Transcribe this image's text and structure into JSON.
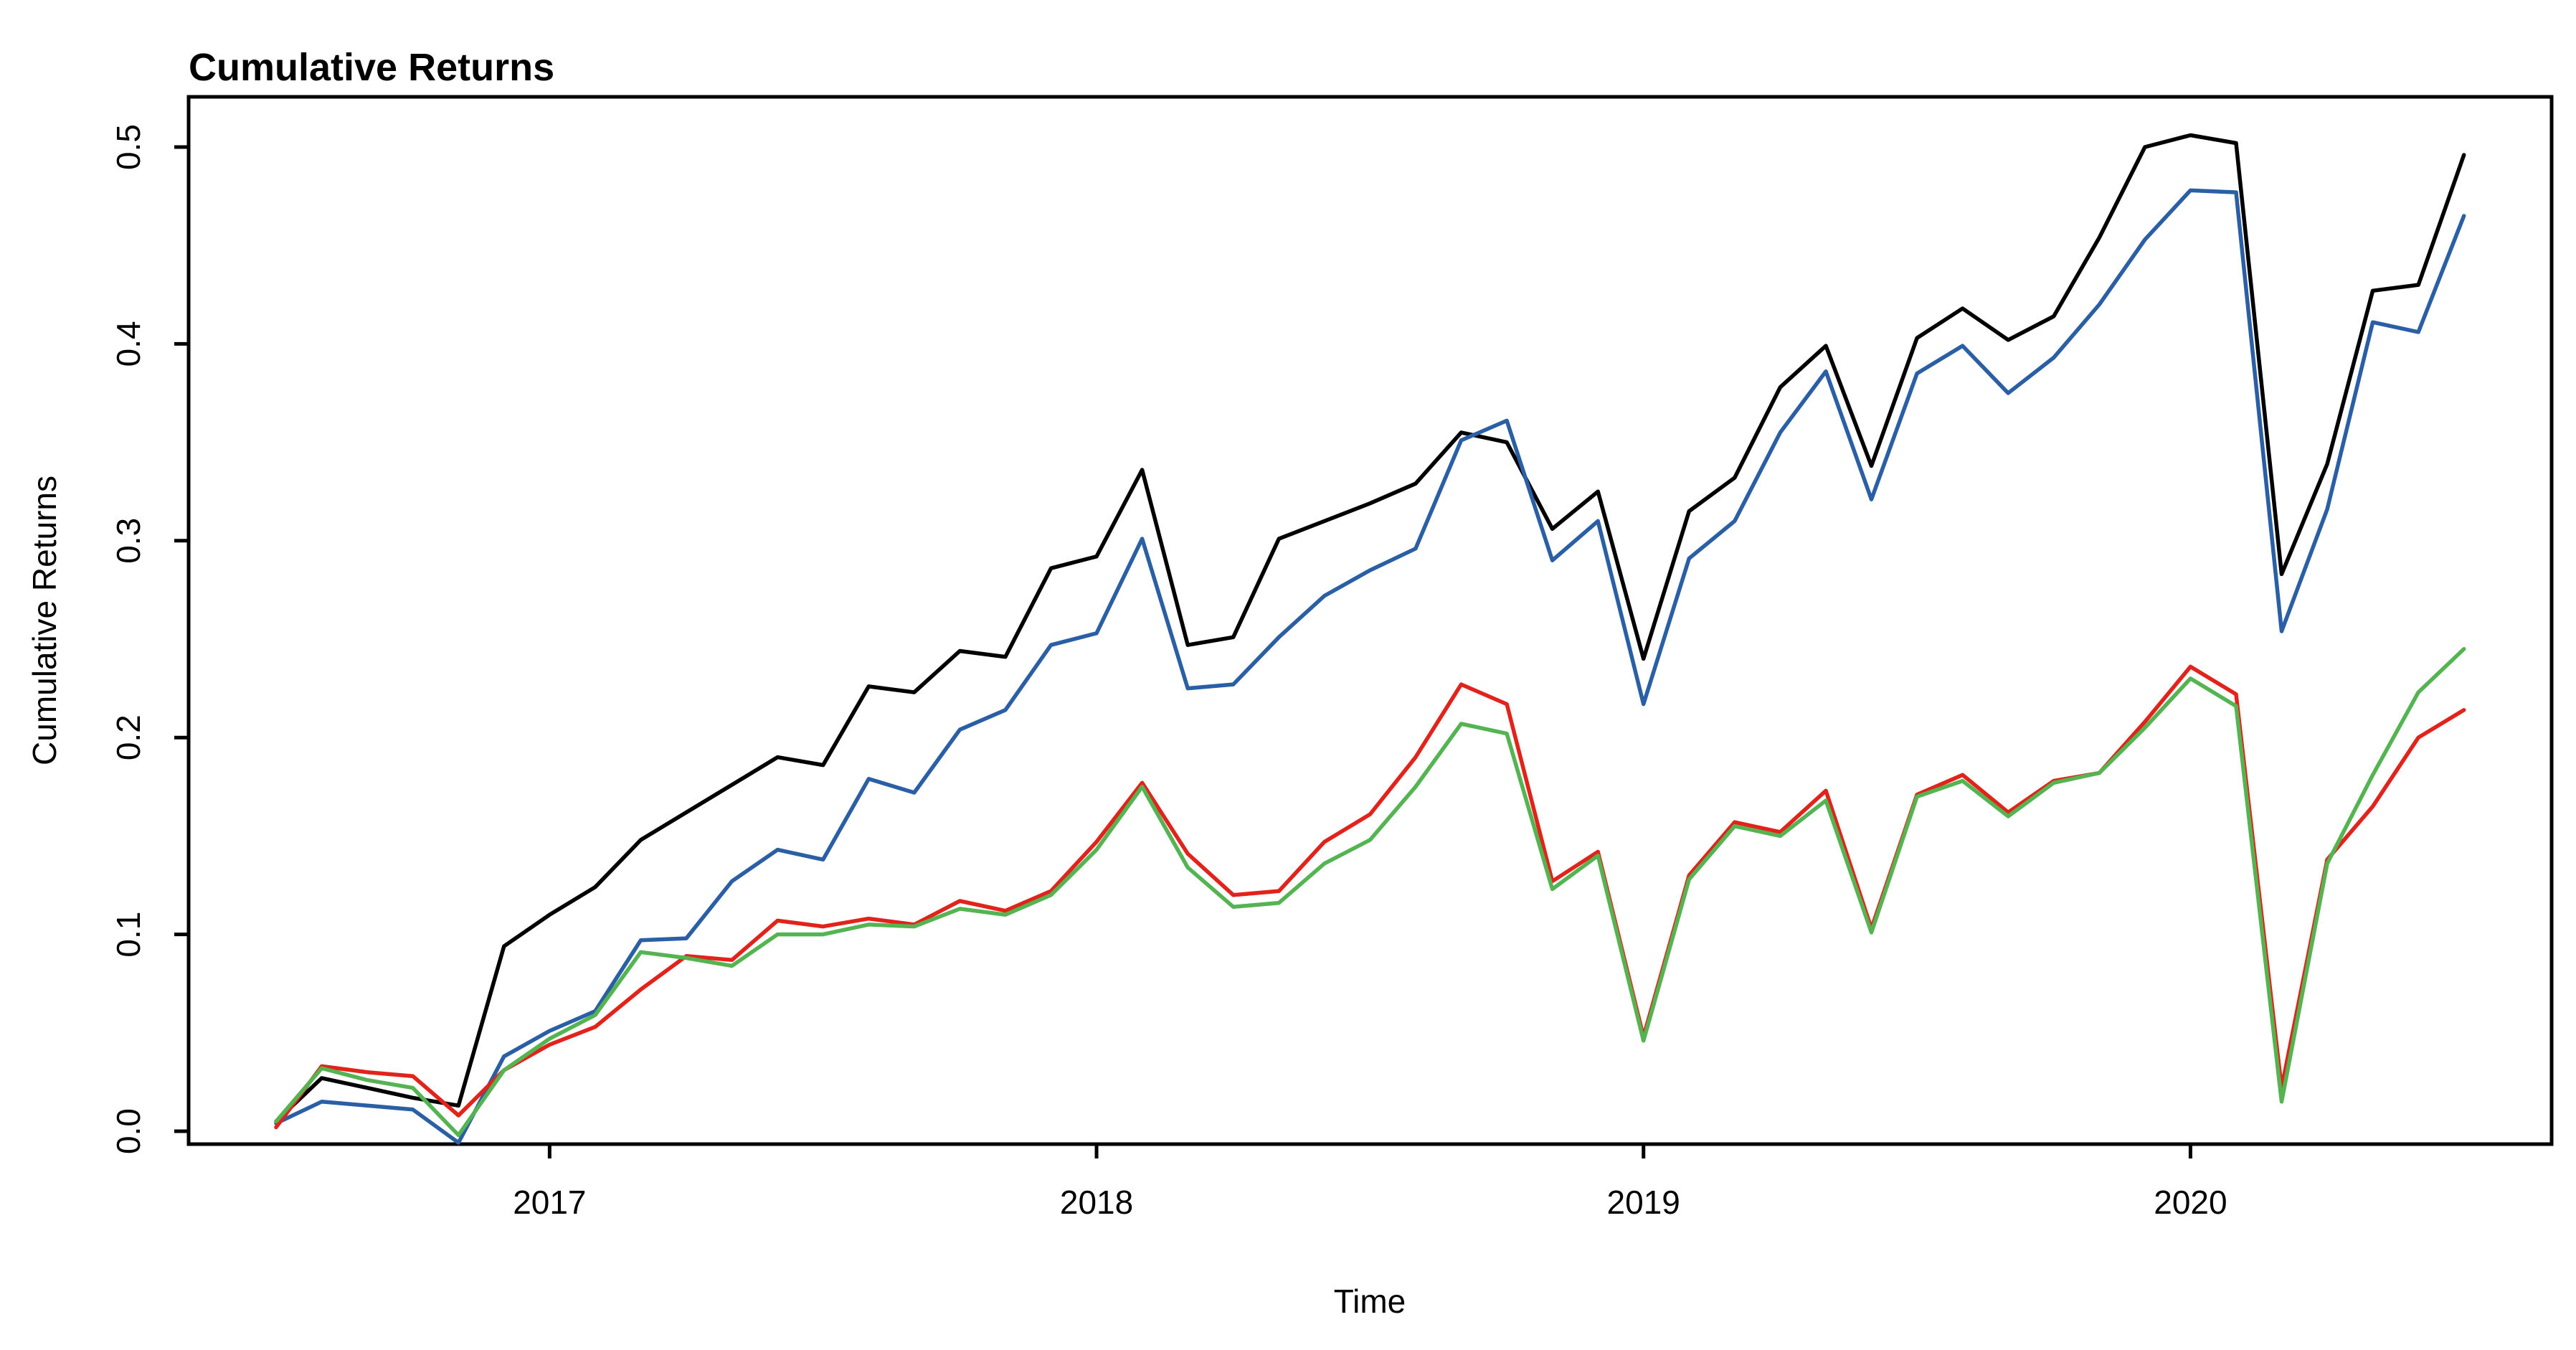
{
  "title": "Cumulative Returns",
  "x_axis": {
    "label": "Time",
    "ticks": [
      "2017",
      "2018",
      "2019",
      "2020"
    ]
  },
  "y_axis": {
    "label": "Cumulative Returns",
    "ticks": [
      "0.0",
      "0.1",
      "0.2",
      "0.3",
      "0.4",
      "0.5"
    ]
  },
  "chart_data": {
    "type": "line",
    "title": "Cumulative Returns",
    "xlabel": "Time",
    "ylabel": "Cumulative Returns",
    "x_domain": [
      2016.34,
      2020.66
    ],
    "y_domain": [
      -0.029,
      0.527
    ],
    "y_tick_values": [
      0.0,
      0.1,
      0.2,
      0.3,
      0.4,
      0.5
    ],
    "x_tick_values": [
      2017,
      2018,
      2019,
      2020
    ],
    "grid": "off",
    "legend": "none",
    "dates": [
      "2016-07",
      "2016-08",
      "2016-09",
      "2016-10",
      "2016-11",
      "2016-12",
      "2017-01",
      "2017-02",
      "2017-03",
      "2017-04",
      "2017-05",
      "2017-06",
      "2017-07",
      "2017-08",
      "2017-09",
      "2017-10",
      "2017-11",
      "2017-12",
      "2018-01",
      "2018-02",
      "2018-03",
      "2018-04",
      "2018-05",
      "2018-06",
      "2018-07",
      "2018-08",
      "2018-09",
      "2018-10",
      "2018-11",
      "2018-12",
      "2019-01",
      "2019-02",
      "2019-03",
      "2019-04",
      "2019-05",
      "2019-06",
      "2019-07",
      "2019-08",
      "2019-09",
      "2019-10",
      "2019-11",
      "2019-12",
      "2020-01",
      "2020-02",
      "2020-03",
      "2020-04",
      "2020-05",
      "2020-06",
      "2020-07"
    ],
    "series": [
      {
        "name": "series-black",
        "color": "#000000",
        "values": [
          0.005,
          0.027,
          0.022,
          0.017,
          0.013,
          0.094,
          0.11,
          0.124,
          0.148,
          0.162,
          0.176,
          0.19,
          0.186,
          0.226,
          0.223,
          0.244,
          0.241,
          0.286,
          0.292,
          0.336,
          0.247,
          0.251,
          0.301,
          0.31,
          0.319,
          0.329,
          0.355,
          0.35,
          0.306,
          0.325,
          0.24,
          0.315,
          0.332,
          0.378,
          0.399,
          0.338,
          0.403,
          0.418,
          0.402,
          0.414,
          0.454,
          0.5,
          0.506,
          0.502,
          0.283,
          0.339,
          0.427,
          0.43,
          0.496
        ]
      },
      {
        "name": "series-blue",
        "color": "#2A5FA5",
        "values": [
          0.004,
          0.015,
          0.013,
          0.011,
          -0.006,
          0.038,
          0.051,
          0.061,
          0.097,
          0.098,
          0.127,
          0.143,
          0.138,
          0.179,
          0.172,
          0.204,
          0.214,
          0.247,
          0.253,
          0.301,
          0.225,
          0.227,
          0.251,
          0.272,
          0.285,
          0.296,
          0.351,
          0.361,
          0.29,
          0.31,
          0.217,
          0.291,
          0.31,
          0.355,
          0.386,
          0.321,
          0.385,
          0.399,
          0.375,
          0.393,
          0.42,
          0.453,
          0.478,
          0.477,
          0.254,
          0.316,
          0.411,
          0.406,
          0.465
        ]
      },
      {
        "name": "series-red",
        "color": "#E2231B",
        "values": [
          0.002,
          0.033,
          0.03,
          0.028,
          0.008,
          0.031,
          0.044,
          0.053,
          0.072,
          0.089,
          0.087,
          0.107,
          0.104,
          0.108,
          0.105,
          0.117,
          0.112,
          0.122,
          0.147,
          0.177,
          0.141,
          0.12,
          0.122,
          0.147,
          0.161,
          0.19,
          0.227,
          0.217,
          0.127,
          0.142,
          0.048,
          0.13,
          0.157,
          0.152,
          0.173,
          0.103,
          0.171,
          0.181,
          0.162,
          0.178,
          0.182,
          0.208,
          0.236,
          0.222,
          0.022,
          0.138,
          0.165,
          0.2,
          0.214
        ]
      },
      {
        "name": "series-green",
        "color": "#55B452",
        "values": [
          0.005,
          0.032,
          0.026,
          0.022,
          -0.002,
          0.031,
          0.047,
          0.059,
          0.091,
          0.088,
          0.084,
          0.1,
          0.1,
          0.105,
          0.104,
          0.113,
          0.11,
          0.12,
          0.143,
          0.175,
          0.134,
          0.114,
          0.116,
          0.136,
          0.148,
          0.175,
          0.207,
          0.202,
          0.123,
          0.14,
          0.046,
          0.128,
          0.155,
          0.15,
          0.168,
          0.101,
          0.17,
          0.178,
          0.16,
          0.177,
          0.182,
          0.205,
          0.23,
          0.216,
          0.015,
          0.136,
          0.181,
          0.223,
          0.245
        ]
      }
    ]
  }
}
